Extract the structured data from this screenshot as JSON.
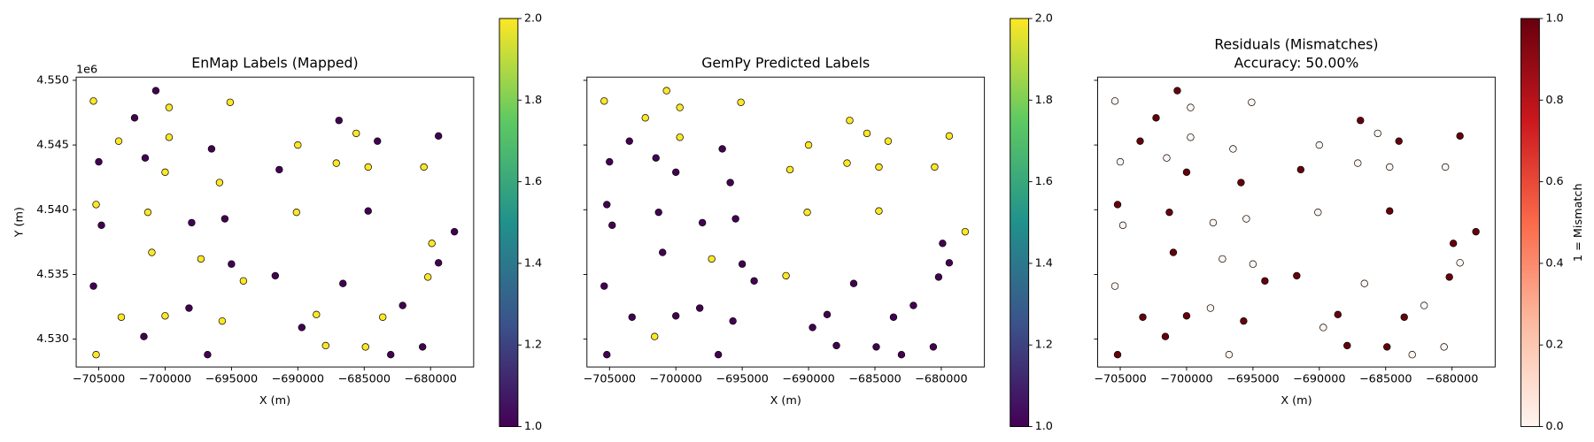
{
  "chart_data": [
    {
      "type": "scatter",
      "title": "EnMap Labels (Mapped)",
      "xlabel": "X (m)",
      "ylabel": "Y (m)",
      "y_offset_label": "1e6",
      "colormap": "viridis",
      "clim": [
        1,
        2
      ],
      "cticks": [
        {
          "value": 1,
          "label": "1.0"
        },
        {
          "value": 1.2,
          "label": "1.2"
        },
        {
          "value": 1.4,
          "label": "1.4"
        },
        {
          "value": 1.6,
          "label": "1.6"
        },
        {
          "value": 1.8,
          "label": "1.8"
        },
        {
          "value": 2,
          "label": "2.0"
        }
      ],
      "xlim": [
        -706700,
        -676750
      ],
      "ylim": [
        4527850,
        4550250
      ],
      "xticks": [
        {
          "value": -705000,
          "label": "−705000"
        },
        {
          "value": -700000,
          "label": "−700000"
        },
        {
          "value": -695000,
          "label": "−695000"
        },
        {
          "value": -690000,
          "label": "−690000"
        },
        {
          "value": -685000,
          "label": "−685000"
        },
        {
          "value": -680000,
          "label": "−680000"
        }
      ],
      "yticks": [
        {
          "value": 4530000,
          "label": "4.530"
        },
        {
          "value": 4535000,
          "label": "4.535"
        },
        {
          "value": 4540000,
          "label": "4.540"
        },
        {
          "value": 4545000,
          "label": "4.545"
        },
        {
          "value": 4550000,
          "label": "4.550"
        }
      ],
      "show_ytick_labels": true,
      "x": [
        -705400,
        -700700,
        -702300,
        -699700,
        -695100,
        -705000,
        -703500,
        -701500,
        -699700,
        -700000,
        -696500,
        -695900,
        -705200,
        -704800,
        -701300,
        -698000,
        -695500,
        -701000,
        -697300,
        -695000,
        -694100,
        -705400,
        -703300,
        -700000,
        -698200,
        -695700,
        -701600,
        -705200,
        -696800,
        -691400,
        -690000,
        -686900,
        -685600,
        -684000,
        -687100,
        -684700,
        -680500,
        -679400,
        -690100,
        -684700,
        -678200,
        -679900,
        -679400,
        -680200,
        -691700,
        -686600,
        -688600,
        -689700,
        -683600,
        -682100,
        -687900,
        -684900,
        -683000,
        -680600
      ],
      "y": [
        4548400,
        4549200,
        4547100,
        4547900,
        4548300,
        4543700,
        4545300,
        4544000,
        4545600,
        4542900,
        4544700,
        4542100,
        4540400,
        4538800,
        4539800,
        4539000,
        4539300,
        4536700,
        4536200,
        4535800,
        4534500,
        4534100,
        4531700,
        4531800,
        4532400,
        4531400,
        4530200,
        4528800,
        4528800,
        4543100,
        4545000,
        4546900,
        4545900,
        4545300,
        4543600,
        4543300,
        4543300,
        4545700,
        4539800,
        4539900,
        4538300,
        4537400,
        4535900,
        4534800,
        4534900,
        4534300,
        4531900,
        4530900,
        4531700,
        4532600,
        4529500,
        4529400,
        4528800,
        4529400
      ],
      "values": [
        2,
        1,
        1,
        2,
        2,
        1,
        2,
        1,
        2,
        2,
        1,
        2,
        2,
        1,
        2,
        1,
        1,
        2,
        2,
        1,
        2,
        1,
        2,
        2,
        1,
        2,
        1,
        2,
        1,
        1,
        2,
        1,
        2,
        1,
        2,
        2,
        2,
        1,
        2,
        1,
        1,
        2,
        1,
        2,
        1,
        1,
        2,
        1,
        2,
        1,
        2,
        2,
        1,
        1
      ]
    },
    {
      "type": "scatter",
      "title": "GemPy Predicted Labels",
      "xlabel": "X (m)",
      "colormap": "viridis",
      "clim": [
        1,
        2
      ],
      "cticks": [
        {
          "value": 1,
          "label": "1.0"
        },
        {
          "value": 1.2,
          "label": "1.2"
        },
        {
          "value": 1.4,
          "label": "1.4"
        },
        {
          "value": 1.6,
          "label": "1.6"
        },
        {
          "value": 1.8,
          "label": "1.8"
        },
        {
          "value": 2,
          "label": "2.0"
        }
      ],
      "xlim": [
        -706700,
        -676750
      ],
      "ylim": [
        4527850,
        4550250
      ],
      "xticks": [
        {
          "value": -705000,
          "label": "−705000"
        },
        {
          "value": -700000,
          "label": "−700000"
        },
        {
          "value": -695000,
          "label": "−695000"
        },
        {
          "value": -690000,
          "label": "−690000"
        },
        {
          "value": -685000,
          "label": "−685000"
        },
        {
          "value": -680000,
          "label": "−680000"
        }
      ],
      "yticks": [
        4530000,
        4535000,
        4540000,
        4545000,
        4550000
      ],
      "show_ytick_labels": false,
      "x": [
        -705400,
        -700700,
        -702300,
        -699700,
        -695100,
        -705000,
        -703500,
        -701500,
        -699700,
        -700000,
        -696500,
        -695900,
        -705200,
        -704800,
        -701300,
        -698000,
        -695500,
        -701000,
        -697300,
        -695000,
        -694100,
        -705400,
        -703300,
        -700000,
        -698200,
        -695700,
        -701600,
        -705200,
        -696800,
        -691400,
        -690000,
        -686900,
        -685600,
        -684000,
        -687100,
        -684700,
        -680500,
        -679400,
        -690100,
        -684700,
        -678200,
        -679900,
        -679400,
        -680200,
        -691700,
        -686600,
        -688600,
        -689700,
        -683600,
        -682100,
        -687900,
        -684900,
        -683000,
        -680600
      ],
      "y": [
        4548400,
        4549200,
        4547100,
        4547900,
        4548300,
        4543700,
        4545300,
        4544000,
        4545600,
        4542900,
        4544700,
        4542100,
        4540400,
        4538800,
        4539800,
        4539000,
        4539300,
        4536700,
        4536200,
        4535800,
        4534500,
        4534100,
        4531700,
        4531800,
        4532400,
        4531400,
        4530200,
        4528800,
        4528800,
        4543100,
        4545000,
        4546900,
        4545900,
        4545300,
        4543600,
        4543300,
        4543300,
        4545700,
        4539800,
        4539900,
        4538300,
        4537400,
        4535900,
        4534800,
        4534900,
        4534300,
        4531900,
        4530900,
        4531700,
        4532600,
        4529500,
        4529400,
        4528800,
        4529400
      ],
      "values": [
        2,
        2,
        2,
        2,
        2,
        1,
        1,
        1,
        2,
        1,
        1,
        1,
        1,
        1,
        1,
        1,
        1,
        1,
        2,
        1,
        1,
        1,
        1,
        1,
        1,
        1,
        2,
        1,
        1,
        2,
        2,
        2,
        2,
        2,
        2,
        2,
        2,
        2,
        2,
        2,
        2,
        1,
        1,
        1,
        2,
        1,
        1,
        1,
        1,
        1,
        1,
        1,
        1,
        1
      ]
    },
    {
      "type": "scatter",
      "title": "Residuals (Mismatches)",
      "subtitle": "Accuracy: 50.00%",
      "xlabel": "X (m)",
      "colorbar_label": "1 = Mismatch",
      "colormap": "Reds",
      "clim": [
        0,
        1
      ],
      "cticks": [
        {
          "value": 0,
          "label": "0.0"
        },
        {
          "value": 0.2,
          "label": "0.2"
        },
        {
          "value": 0.4,
          "label": "0.4"
        },
        {
          "value": 0.6,
          "label": "0.6"
        },
        {
          "value": 0.8,
          "label": "0.8"
        },
        {
          "value": 1,
          "label": "1.0"
        }
      ],
      "xlim": [
        -706700,
        -676750
      ],
      "ylim": [
        4527850,
        4550250
      ],
      "xticks": [
        {
          "value": -705000,
          "label": "−705000"
        },
        {
          "value": -700000,
          "label": "−700000"
        },
        {
          "value": -695000,
          "label": "−695000"
        },
        {
          "value": -690000,
          "label": "−690000"
        },
        {
          "value": -685000,
          "label": "−685000"
        },
        {
          "value": -680000,
          "label": "−680000"
        }
      ],
      "yticks": [
        4530000,
        4535000,
        4540000,
        4545000,
        4550000
      ],
      "show_ytick_labels": false,
      "x": [
        -705400,
        -700700,
        -702300,
        -699700,
        -695100,
        -705000,
        -703500,
        -701500,
        -699700,
        -700000,
        -696500,
        -695900,
        -705200,
        -704800,
        -701300,
        -698000,
        -695500,
        -701000,
        -697300,
        -695000,
        -694100,
        -705400,
        -703300,
        -700000,
        -698200,
        -695700,
        -701600,
        -705200,
        -696800,
        -691400,
        -690000,
        -686900,
        -685600,
        -684000,
        -687100,
        -684700,
        -680500,
        -679400,
        -690100,
        -684700,
        -678200,
        -679900,
        -679400,
        -680200,
        -691700,
        -686600,
        -688600,
        -689700,
        -683600,
        -682100,
        -687900,
        -684900,
        -683000,
        -680600
      ],
      "y": [
        4548400,
        4549200,
        4547100,
        4547900,
        4548300,
        4543700,
        4545300,
        4544000,
        4545600,
        4542900,
        4544700,
        4542100,
        4540400,
        4538800,
        4539800,
        4539000,
        4539300,
        4536700,
        4536200,
        4535800,
        4534500,
        4534100,
        4531700,
        4531800,
        4532400,
        4531400,
        4530200,
        4528800,
        4528800,
        4543100,
        4545000,
        4546900,
        4545900,
        4545300,
        4543600,
        4543300,
        4543300,
        4545700,
        4539800,
        4539900,
        4538300,
        4537400,
        4535900,
        4534800,
        4534900,
        4534300,
        4531900,
        4530900,
        4531700,
        4532600,
        4529500,
        4529400,
        4528800,
        4529400
      ],
      "values": [
        0,
        1,
        1,
        0,
        0,
        0,
        1,
        0,
        0,
        1,
        0,
        1,
        1,
        0,
        1,
        0,
        0,
        1,
        0,
        0,
        1,
        0,
        1,
        1,
        0,
        1,
        1,
        1,
        0,
        1,
        0,
        1,
        0,
        1,
        0,
        0,
        0,
        1,
        0,
        1,
        1,
        1,
        0,
        1,
        1,
        0,
        1,
        0,
        1,
        0,
        1,
        1,
        0,
        0
      ]
    }
  ]
}
